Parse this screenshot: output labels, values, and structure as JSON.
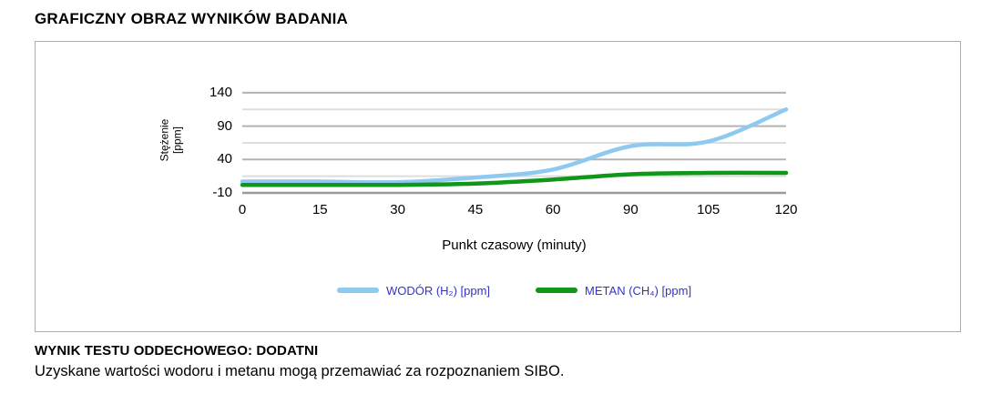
{
  "page": {
    "title": "GRAFICZNY OBRAZ WYNIKÓW BADANIA",
    "result_heading": "WYNIK TESTU ODDECHOWEGO: DODATNI",
    "result_description": "Uzyskane wartości wodoru i metanu mogą przemawiać za rozpoznaniem SIBO."
  },
  "chart_data": {
    "type": "line",
    "title": "",
    "xlabel": "Punkt czasowy (minuty)",
    "ylabel": "Stężenie [ppm]",
    "ylabel_lines": [
      "Stężenie",
      "[ppm]"
    ],
    "categories": [
      "0",
      "15",
      "30",
      "45",
      "60",
      "90",
      "105",
      "120"
    ],
    "series": [
      {
        "name": "WODÓR (H₂) [ppm]",
        "id": "hydrogen",
        "color": "#8ec9f1",
        "values": [
          7,
          7,
          6,
          13,
          25,
          60,
          67,
          115
        ]
      },
      {
        "name": "METAN (CH₄) [ppm]",
        "id": "methane",
        "color": "#109618",
        "values": [
          2,
          2,
          2,
          4,
          10,
          18,
          20,
          20
        ]
      }
    ],
    "yticks": [
      140,
      90,
      40,
      -10
    ],
    "gridlines": [
      140,
      115,
      90,
      65,
      40,
      15,
      -10
    ],
    "ylim": [
      -10,
      148
    ],
    "grid": true,
    "legend_position": "bottom",
    "legend_text_color": "#3333cc"
  }
}
